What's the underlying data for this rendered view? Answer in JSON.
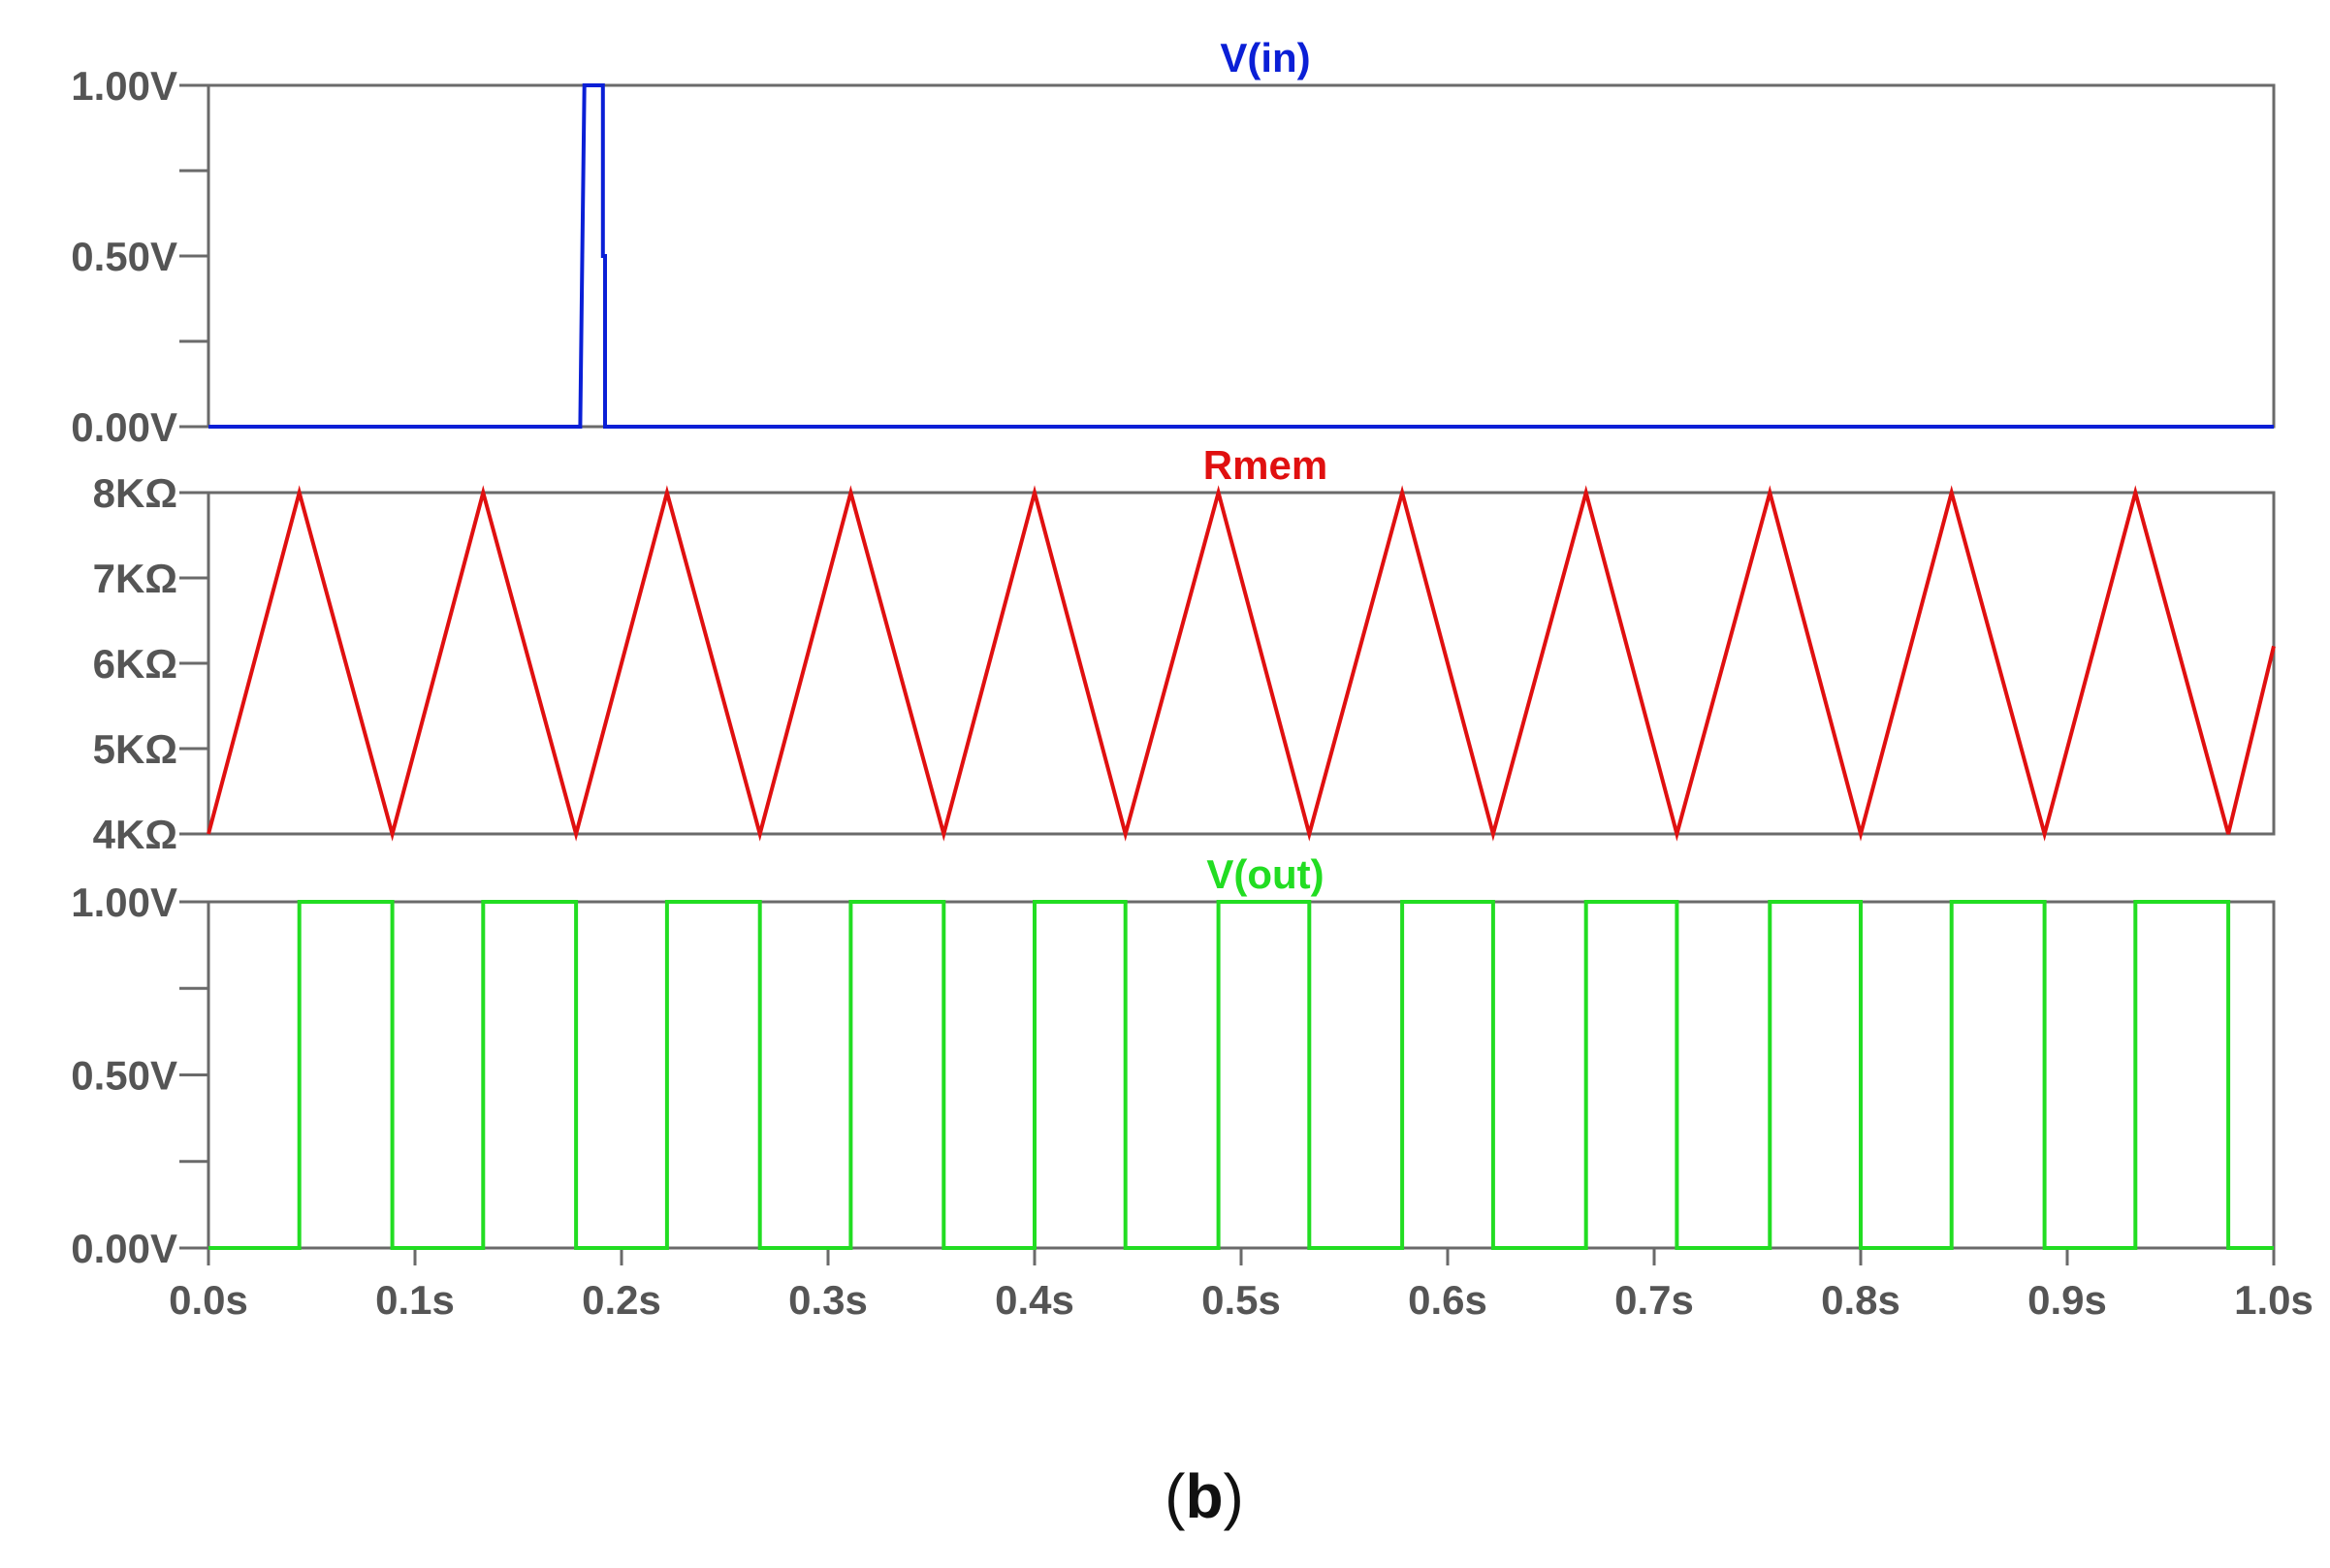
{
  "caption": {
    "open": "(",
    "letter": "b",
    "close": ")"
  },
  "chart_data": [
    {
      "type": "line",
      "title": "V(in)",
      "color": "#0a1fd6",
      "xlim": [
        0,
        1.0
      ],
      "ylim": [
        0,
        1.0
      ],
      "y_ticks": [
        {
          "value": 0.0,
          "label": "0.00V"
        },
        {
          "value": 0.25,
          "label": ""
        },
        {
          "value": 0.5,
          "label": "0.50V"
        },
        {
          "value": 0.75,
          "label": ""
        },
        {
          "value": 1.0,
          "label": "1.00V"
        }
      ],
      "x": [
        0,
        0.18,
        0.181,
        0.181,
        0.182,
        0.182,
        0.191,
        0.191,
        0.192,
        0.192,
        0.193,
        1.0
      ],
      "y": [
        0,
        0,
        0.5,
        0.5,
        1.0,
        1.0,
        1.0,
        0.5,
        0.5,
        0,
        0,
        0
      ]
    },
    {
      "type": "line",
      "title": "Rmem",
      "color": "#e01010",
      "xlim": [
        0,
        1.0
      ],
      "ylim": [
        4000,
        8000
      ],
      "y_ticks": [
        {
          "value": 4000,
          "label": "4KΩ"
        },
        {
          "value": 5000,
          "label": "5KΩ"
        },
        {
          "value": 6000,
          "label": "6KΩ"
        },
        {
          "value": 7000,
          "label": "7KΩ"
        },
        {
          "value": 8000,
          "label": "8KΩ"
        }
      ],
      "x": [
        0,
        0.044,
        0.089,
        0.133,
        0.178,
        0.222,
        0.267,
        0.311,
        0.356,
        0.4,
        0.444,
        0.489,
        0.533,
        0.578,
        0.622,
        0.667,
        0.711,
        0.756,
        0.8,
        0.844,
        0.889,
        0.933,
        0.978,
        1.0
      ],
      "y": [
        4000,
        8000,
        4000,
        8000,
        4000,
        8000,
        4000,
        8000,
        4000,
        8000,
        4000,
        8000,
        4000,
        8000,
        4000,
        8000,
        4000,
        8000,
        4000,
        8000,
        4000,
        8000,
        4000,
        6200
      ]
    },
    {
      "type": "line",
      "title": "V(out)",
      "color": "#22dd22",
      "xlim": [
        0,
        1.0
      ],
      "ylim": [
        0,
        1.0
      ],
      "y_ticks": [
        {
          "value": 0.0,
          "label": "0.00V"
        },
        {
          "value": 0.25,
          "label": ""
        },
        {
          "value": 0.5,
          "label": "0.50V"
        },
        {
          "value": 0.75,
          "label": ""
        },
        {
          "value": 1.0,
          "label": "1.00V"
        }
      ],
      "x": [
        0,
        0.044,
        0.044,
        0.089,
        0.089,
        0.133,
        0.133,
        0.178,
        0.178,
        0.222,
        0.222,
        0.267,
        0.267,
        0.311,
        0.311,
        0.356,
        0.356,
        0.4,
        0.4,
        0.444,
        0.444,
        0.489,
        0.489,
        0.533,
        0.533,
        0.578,
        0.578,
        0.622,
        0.622,
        0.667,
        0.667,
        0.711,
        0.711,
        0.756,
        0.756,
        0.8,
        0.8,
        0.844,
        0.844,
        0.889,
        0.889,
        0.933,
        0.933,
        0.978,
        0.978,
        1.0
      ],
      "y": [
        0,
        0,
        1,
        1,
        0,
        0,
        1,
        1,
        0,
        0,
        1,
        1,
        0,
        0,
        1,
        1,
        0,
        0,
        1,
        1,
        0,
        0,
        1,
        1,
        0,
        0,
        1,
        1,
        0,
        0,
        1,
        1,
        0,
        0,
        1,
        1,
        0,
        0,
        1,
        1,
        0,
        0,
        1,
        1,
        0,
        0
      ],
      "x_ticks": [
        {
          "value": 0.0,
          "label": "0.0s"
        },
        {
          "value": 0.1,
          "label": "0.1s"
        },
        {
          "value": 0.2,
          "label": "0.2s"
        },
        {
          "value": 0.3,
          "label": "0.3s"
        },
        {
          "value": 0.4,
          "label": "0.4s"
        },
        {
          "value": 0.5,
          "label": "0.5s"
        },
        {
          "value": 0.6,
          "label": "0.6s"
        },
        {
          "value": 0.7,
          "label": "0.7s"
        },
        {
          "value": 0.8,
          "label": "0.8s"
        },
        {
          "value": 0.9,
          "label": "0.9s"
        },
        {
          "value": 1.0,
          "label": "1.0s"
        }
      ]
    }
  ]
}
